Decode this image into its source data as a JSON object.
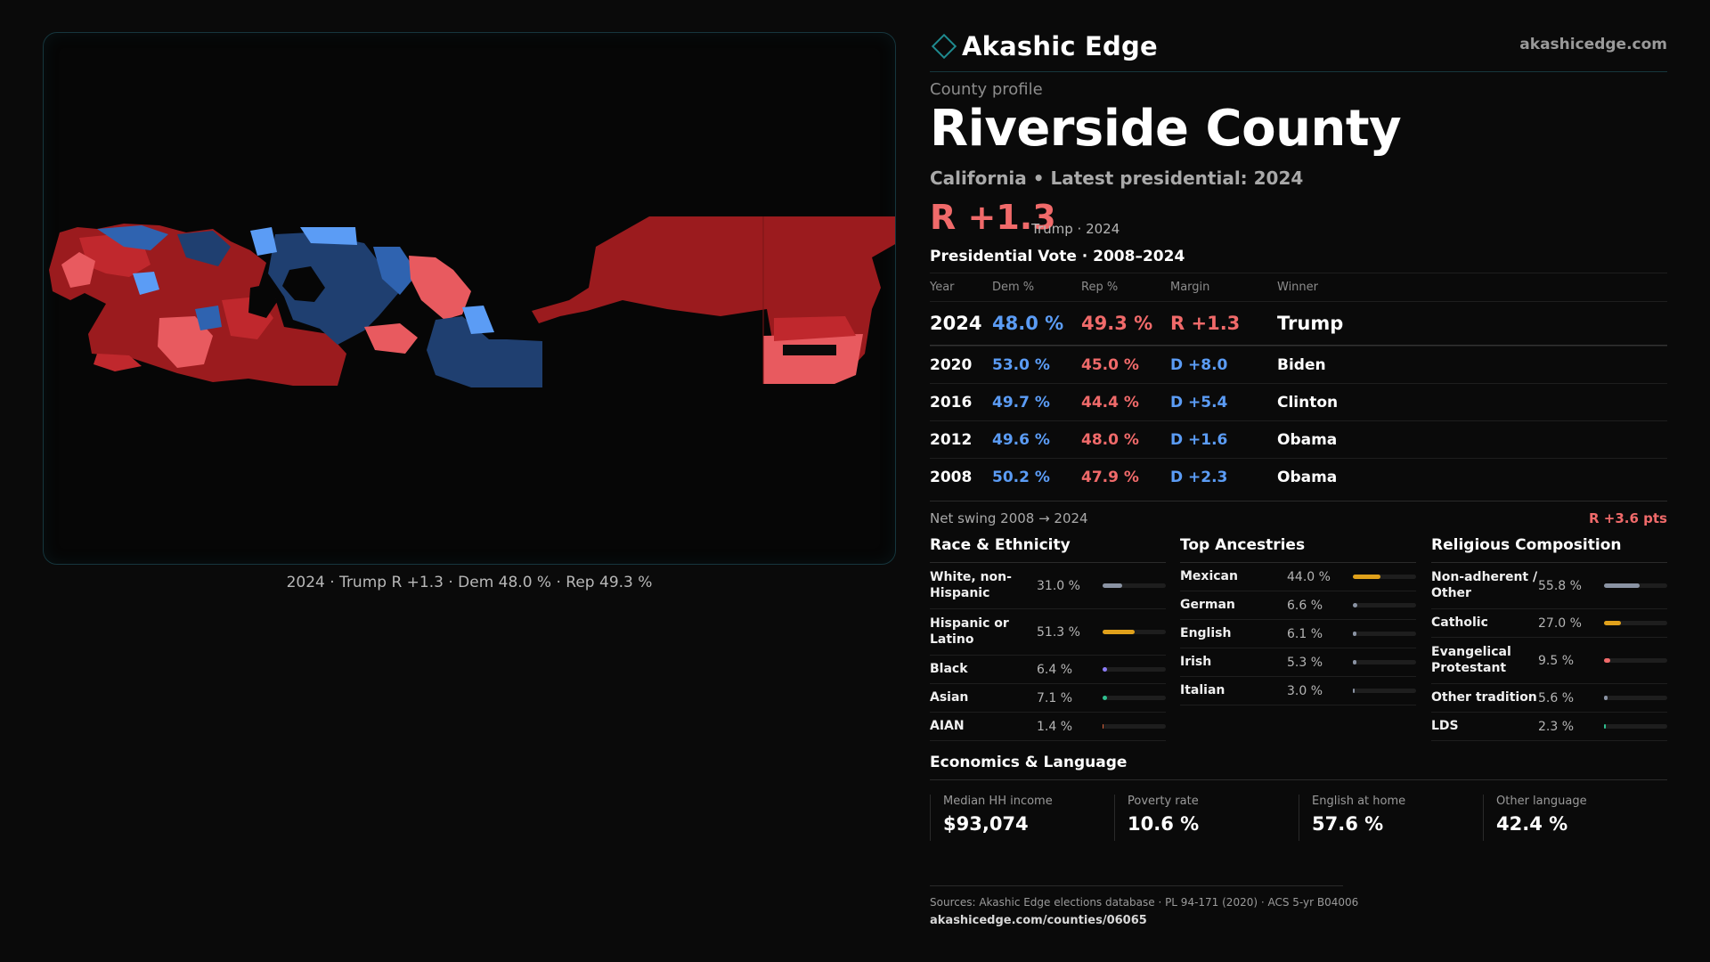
{
  "map": {
    "caption": "2024 · Trump R +1.3 · Dem 48.0 % · Rep 49.3 %",
    "colors": {
      "rep_dark": "#9b1b1e",
      "rep_mid": "#c0282d",
      "rep_light": "#e85a5f",
      "dem_dark": "#1f3f70",
      "dem_mid": "#2f63b0",
      "dem_light": "#5b9cf5"
    }
  },
  "brand": {
    "name": "Akashic Edge",
    "logo_icon": "diamond-icon",
    "site": "akashicedge.com"
  },
  "header": {
    "eyebrow": "County profile",
    "county": "Riverside County",
    "subline": "California • Latest presidential: 2024",
    "margin": "R +1.3",
    "margin_note": "Trump · 2024"
  },
  "presidential": {
    "title": "Presidential Vote · 2008–2024",
    "headers": {
      "year": "Year",
      "dem": "Dem %",
      "rep": "Rep %",
      "margin": "Margin",
      "winner": "Winner"
    },
    "latest": {
      "year": "2024",
      "dem": "48.0 %",
      "rep": "49.3 %",
      "margin": "R +1.3",
      "winner": "Trump"
    },
    "rows": [
      {
        "year": "2020",
        "dem": "53.0 %",
        "rep": "45.0 %",
        "margin": "D +8.0",
        "winner": "Biden"
      },
      {
        "year": "2016",
        "dem": "49.7 %",
        "rep": "44.4 %",
        "margin": "D +5.4",
        "winner": "Clinton"
      },
      {
        "year": "2012",
        "dem": "49.6 %",
        "rep": "48.0 %",
        "margin": "D +1.6",
        "winner": "Obama"
      },
      {
        "year": "2008",
        "dem": "50.2 %",
        "rep": "47.9 %",
        "margin": "D +2.3",
        "winner": "Obama"
      }
    ],
    "swing_label": "Net swing 2008 → 2024",
    "swing_value": "R +3.6 pts"
  },
  "race": {
    "title": "Race & Ethnicity",
    "items": [
      {
        "label": "White, non-Hispanic",
        "pct": "31.0 %",
        "value": 31.0,
        "color": "#8a93a3"
      },
      {
        "label": "Hispanic or Latino",
        "pct": "51.3 %",
        "value": 51.3,
        "color": "#e0a11b"
      },
      {
        "label": "Black",
        "pct": "6.4 %",
        "value": 6.4,
        "color": "#8b7cf6"
      },
      {
        "label": "Asian",
        "pct": "7.1 %",
        "value": 7.1,
        "color": "#2fbf8f"
      },
      {
        "label": "AIAN",
        "pct": "1.4 %",
        "value": 1.4,
        "color": "#d9623b"
      }
    ]
  },
  "ancestry": {
    "title": "Top Ancestries",
    "items": [
      {
        "label": "Mexican",
        "pct": "44.0 %",
        "value": 44.0,
        "color": "#e0a11b"
      },
      {
        "label": "German",
        "pct": "6.6 %",
        "value": 6.6,
        "color": "#8a93a3"
      },
      {
        "label": "English",
        "pct": "6.1 %",
        "value": 6.1,
        "color": "#8a93a3"
      },
      {
        "label": "Irish",
        "pct": "5.3 %",
        "value": 5.3,
        "color": "#8a93a3"
      },
      {
        "label": "Italian",
        "pct": "3.0 %",
        "value": 3.0,
        "color": "#8a93a3"
      }
    ]
  },
  "religion": {
    "title": "Religious Composition",
    "items": [
      {
        "label": "Non-adherent / Other",
        "pct": "55.8 %",
        "value": 55.8,
        "color": "#8a93a3"
      },
      {
        "label": "Catholic",
        "pct": "27.0 %",
        "value": 27.0,
        "color": "#e0a11b"
      },
      {
        "label": "Evangelical Protestant",
        "pct": "9.5 %",
        "value": 9.5,
        "color": "#f06a6a"
      },
      {
        "label": "Other tradition",
        "pct": "5.6 %",
        "value": 5.6,
        "color": "#8a93a3"
      },
      {
        "label": "LDS",
        "pct": "2.3 %",
        "value": 2.3,
        "color": "#2fbf8f"
      }
    ]
  },
  "economics": {
    "title": "Economics & Language",
    "items": [
      {
        "label": "Median HH income",
        "value": "$93,074"
      },
      {
        "label": "Poverty rate",
        "value": "10.6 %"
      },
      {
        "label": "English at home",
        "value": "57.6 %"
      },
      {
        "label": "Other language",
        "value": "42.4 %"
      }
    ]
  },
  "footer": {
    "sources": "Sources: Akashic Edge elections database · PL 94-171 (2020) · ACS 5-yr B04006",
    "url": "akashicedge.com/counties/06065"
  }
}
